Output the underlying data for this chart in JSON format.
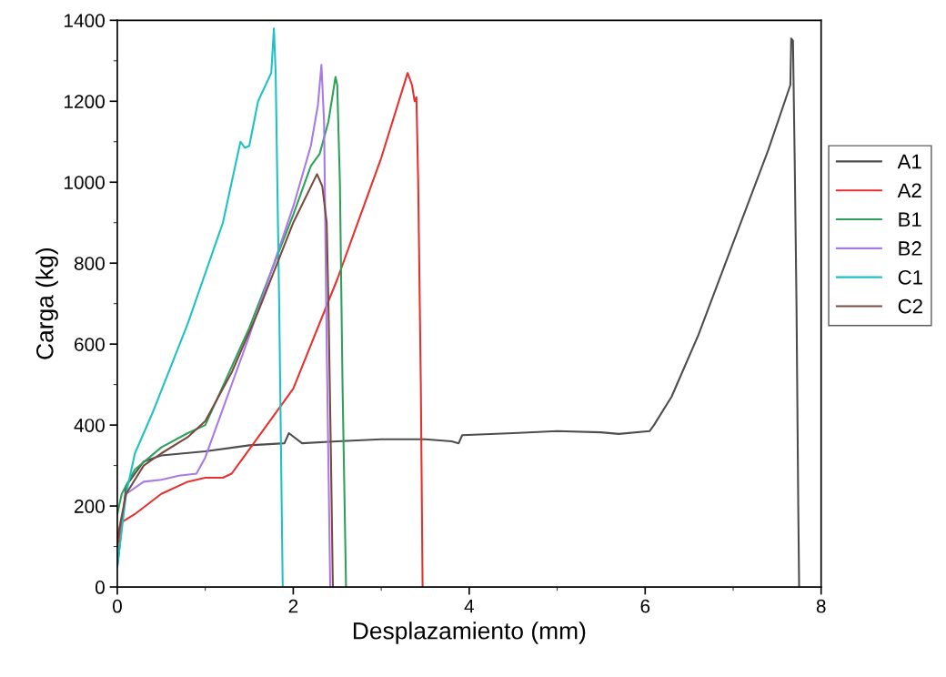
{
  "chart_data": {
    "type": "line",
    "xlabel": "Desplazamiento (mm)",
    "ylabel": "Carga (kg)",
    "xlim": [
      0,
      8
    ],
    "ylim": [
      0,
      1400
    ],
    "xticks": [
      0,
      2,
      4,
      6,
      8
    ],
    "yticks": [
      0,
      200,
      400,
      600,
      800,
      1000,
      1200,
      1400
    ],
    "grid": false,
    "legend": "right",
    "line_style": "solid",
    "marker": "none",
    "series": [
      {
        "name": "A1",
        "color": "#4d4d4d",
        "x": [
          0,
          0.1,
          0.3,
          0.5,
          1,
          1.5,
          1.9,
          1.95,
          2.1,
          2.5,
          3,
          3.5,
          3.8,
          3.88,
          3.92,
          4.5,
          5,
          5.5,
          5.7,
          6.05,
          6.1,
          6.3,
          6.6,
          7,
          7.4,
          7.65,
          7.66,
          7.68,
          7.7,
          7.72,
          7.74,
          7.75
        ],
        "values": [
          50,
          250,
          310,
          325,
          335,
          350,
          355,
          380,
          355,
          360,
          365,
          365,
          360,
          355,
          375,
          380,
          385,
          382,
          378,
          385,
          400,
          470,
          620,
          850,
          1080,
          1240,
          1355,
          1350,
          1050,
          700,
          200,
          0
        ]
      },
      {
        "name": "A2",
        "color": "#e8302f",
        "x": [
          0,
          0.05,
          0.2,
          0.5,
          0.8,
          1.0,
          1.2,
          1.3,
          1.5,
          2.0,
          2.5,
          3.0,
          3.3,
          3.35,
          3.38,
          3.4,
          3.42,
          3.45,
          3.47
        ],
        "values": [
          100,
          160,
          180,
          230,
          260,
          270,
          270,
          280,
          340,
          490,
          760,
          1060,
          1270,
          1240,
          1200,
          1210,
          1000,
          500,
          0
        ]
      },
      {
        "name": "B1",
        "color": "#2ea05a",
        "x": [
          0,
          0.05,
          0.2,
          0.5,
          0.8,
          1.0,
          1.5,
          2.0,
          2.2,
          2.3,
          2.4,
          2.48,
          2.5,
          2.53,
          2.56,
          2.6
        ],
        "values": [
          180,
          230,
          290,
          345,
          380,
          400,
          640,
          920,
          1040,
          1070,
          1150,
          1260,
          1240,
          1000,
          500,
          0
        ]
      },
      {
        "name": "B2",
        "color": "#a77ae6",
        "x": [
          0.1,
          0.3,
          0.5,
          0.7,
          0.9,
          1.0,
          1.5,
          2.0,
          2.2,
          2.28,
          2.32,
          2.35,
          2.38,
          2.42
        ],
        "values": [
          230,
          260,
          265,
          275,
          280,
          320,
          620,
          940,
          1090,
          1190,
          1290,
          1150,
          600,
          0
        ]
      },
      {
        "name": "C1",
        "color": "#1ec2c2",
        "x": [
          0,
          0.1,
          0.2,
          0.4,
          0.8,
          1.2,
          1.4,
          1.45,
          1.5,
          1.6,
          1.75,
          1.78,
          1.8,
          1.84,
          1.88
        ],
        "values": [
          50,
          230,
          330,
          430,
          650,
          900,
          1100,
          1085,
          1090,
          1200,
          1270,
          1380,
          1270,
          700,
          0
        ]
      },
      {
        "name": "C2",
        "color": "#7a4a40",
        "x": [
          0,
          0.1,
          0.3,
          0.5,
          0.8,
          1.0,
          1.3,
          1.6,
          2.0,
          2.27,
          2.33,
          2.38,
          2.4,
          2.43,
          2.45
        ],
        "values": [
          120,
          230,
          300,
          330,
          370,
          410,
          530,
          680,
          900,
          1020,
          990,
          900,
          700,
          300,
          0
        ]
      }
    ]
  }
}
